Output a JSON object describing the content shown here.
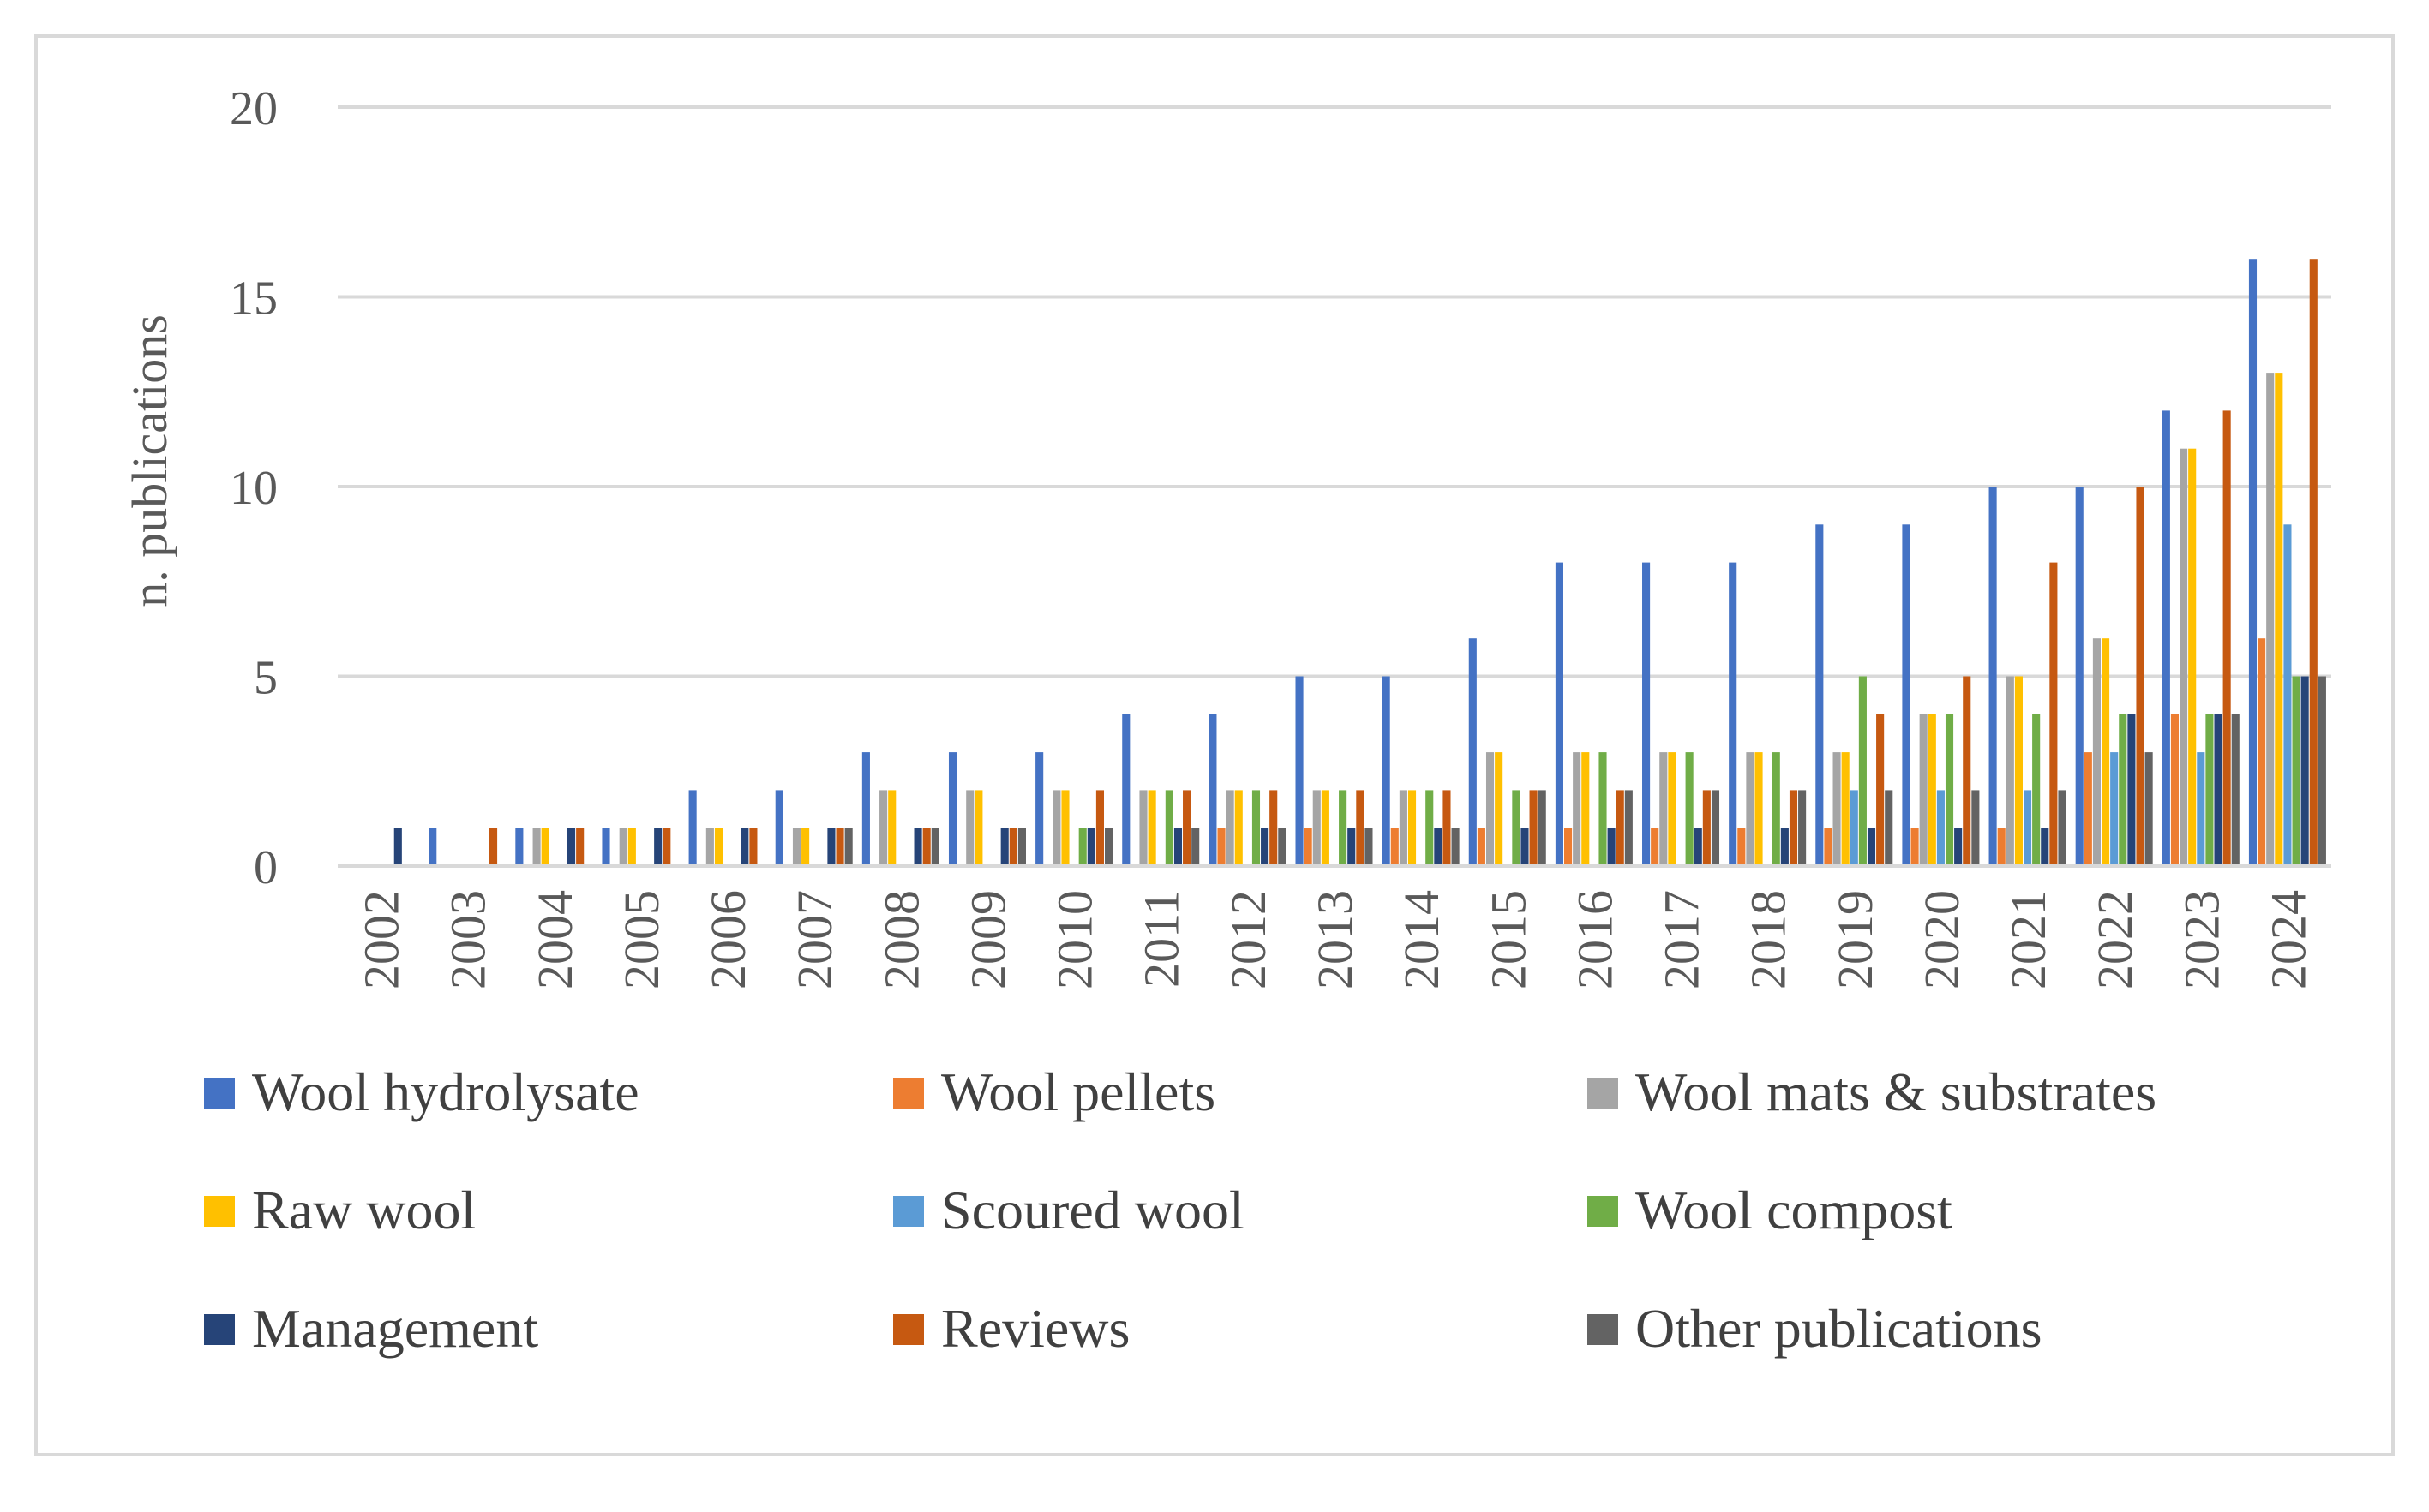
{
  "chart_data": {
    "type": "bar",
    "title": "",
    "xlabel": "",
    "ylabel": "n. publications",
    "ylim": [
      0,
      20
    ],
    "yticks": [
      "0",
      "5",
      "10",
      "15",
      "20"
    ],
    "grid": true,
    "legend_position": "bottom",
    "categories": [
      "2002",
      "2003",
      "2004",
      "2005",
      "2006",
      "2007",
      "2008",
      "2009",
      "2010",
      "2011",
      "2012",
      "2013",
      "2014",
      "2015",
      "2016",
      "2017",
      "2018",
      "2019",
      "2020",
      "2021",
      "2022",
      "2023",
      "2024"
    ],
    "series": [
      {
        "name": "Wool hydrolysate",
        "color": "#4472c4",
        "values": [
          0,
          1,
          1,
          1,
          2,
          2,
          3,
          3,
          3,
          4,
          4,
          5,
          5,
          6,
          8,
          8,
          8,
          9,
          9,
          10,
          10,
          12,
          16
        ]
      },
      {
        "name": "Wool pellets",
        "color": "#ed7d31",
        "values": [
          0,
          0,
          0,
          0,
          0,
          0,
          0,
          0,
          0,
          0,
          1,
          1,
          1,
          1,
          1,
          1,
          1,
          1,
          1,
          1,
          3,
          4,
          6
        ]
      },
      {
        "name": "Wool mats & substrates",
        "color": "#a5a5a5",
        "values": [
          0,
          0,
          1,
          1,
          1,
          1,
          2,
          2,
          2,
          2,
          2,
          2,
          2,
          3,
          3,
          3,
          3,
          3,
          4,
          5,
          6,
          11,
          13
        ]
      },
      {
        "name": "Raw wool",
        "color": "#ffc000",
        "values": [
          0,
          0,
          1,
          1,
          1,
          1,
          2,
          2,
          2,
          2,
          2,
          2,
          2,
          3,
          3,
          3,
          3,
          3,
          4,
          5,
          6,
          11,
          13
        ]
      },
      {
        "name": "Scoured wool",
        "color": "#5b9bd5",
        "values": [
          0,
          0,
          0,
          0,
          0,
          0,
          0,
          0,
          0,
          0,
          0,
          0,
          0,
          0,
          0,
          0,
          0,
          2,
          2,
          2,
          3,
          3,
          9
        ]
      },
      {
        "name": "Wool compost",
        "color": "#70ad47",
        "values": [
          0,
          0,
          0,
          0,
          0,
          0,
          0,
          0,
          1,
          2,
          2,
          2,
          2,
          2,
          3,
          3,
          3,
          5,
          4,
          4,
          4,
          4,
          5
        ]
      },
      {
        "name": "Management",
        "color": "#264478",
        "values": [
          1,
          0,
          1,
          1,
          1,
          1,
          1,
          1,
          1,
          1,
          1,
          1,
          1,
          1,
          1,
          1,
          1,
          1,
          1,
          1,
          4,
          4,
          5
        ]
      },
      {
        "name": "Reviews",
        "color": "#c65911",
        "values": [
          0,
          1,
          1,
          1,
          1,
          1,
          1,
          1,
          2,
          2,
          2,
          2,
          2,
          2,
          2,
          2,
          2,
          4,
          5,
          8,
          10,
          12,
          16
        ]
      },
      {
        "name": "Other publications",
        "color": "#636363",
        "values": [
          0,
          0,
          0,
          0,
          0,
          1,
          1,
          1,
          1,
          1,
          1,
          1,
          1,
          2,
          2,
          2,
          2,
          2,
          2,
          2,
          3,
          4,
          5
        ]
      }
    ]
  }
}
